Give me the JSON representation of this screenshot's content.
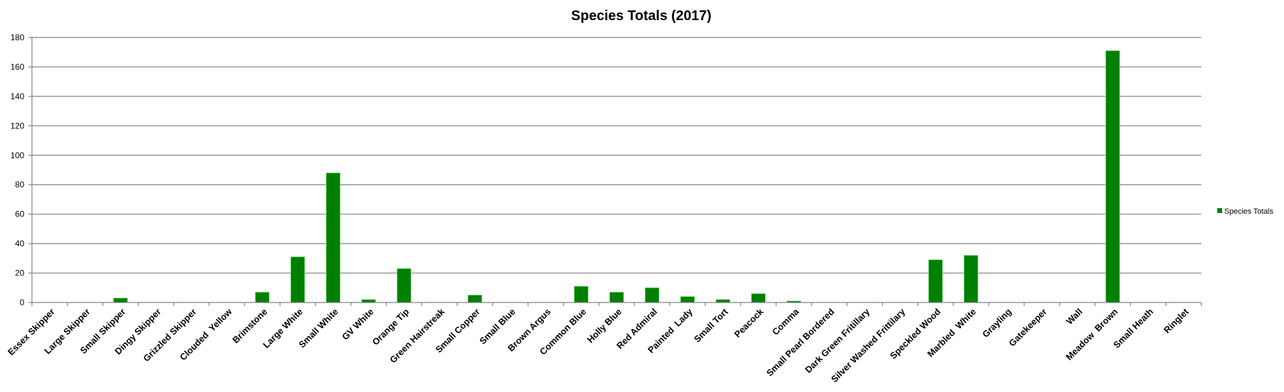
{
  "chart_data": {
    "type": "bar",
    "title": "Species Totals (2017)",
    "xlabel": "",
    "ylabel": "",
    "ylim": [
      0,
      180
    ],
    "yticks": [
      0,
      20,
      40,
      60,
      80,
      100,
      120,
      140,
      160,
      180
    ],
    "grid": true,
    "legend_position": "right",
    "bar_color": "#008000",
    "categories": [
      "Essex Skipper",
      "Large Skipper",
      "Small Skipper",
      "Dingy Skipper",
      "Grizzled Skipper",
      "Clouded  Yellow",
      "Brimstone",
      "Large White",
      "Small White",
      "GV White",
      "Orange Tip",
      "Green Hairstreak",
      "Small Copper",
      "Small Blue",
      "Brown Argus",
      "Common Blue",
      "Holly Blue",
      "Red Admiral",
      "Painted  Lady",
      "Small Tort",
      "Peacock",
      "Comma",
      "Small Pearl Bordered",
      "Dark Green Fritillary",
      "Silver Washed Frittilary",
      "Speckled Wood",
      "Marbled  White",
      "Grayling",
      "Gatekeeper",
      "Wall",
      "Meadow  Brown",
      "Small Heath",
      "Ringlet"
    ],
    "series": [
      {
        "name": "Species Totals",
        "values": [
          0,
          0,
          3,
          0,
          0,
          0,
          7,
          31,
          88,
          2,
          23,
          0,
          5,
          0,
          0,
          11,
          7,
          10,
          4,
          2,
          6,
          1,
          0,
          0,
          0,
          29,
          32,
          0,
          0,
          0,
          171,
          0,
          0
        ]
      }
    ]
  }
}
